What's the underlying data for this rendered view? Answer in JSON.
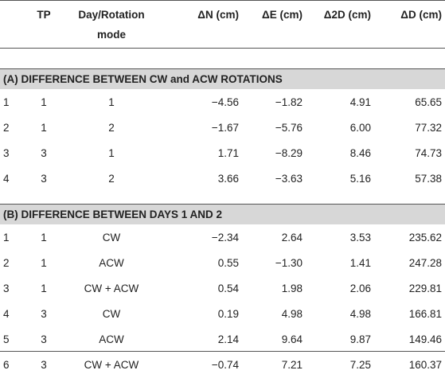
{
  "header": {
    "col0": "",
    "col1": "TP",
    "col2_line1": "Day/Rotation",
    "col2_line2": "mode",
    "col3": "ΔN (cm)",
    "col4": "ΔE (cm)",
    "col5": "Δ2D (cm)",
    "col6": "ΔD (cm)"
  },
  "sections": [
    {
      "title": "(A) DIFFERENCE BETWEEN CW and ACW ROTATIONS",
      "rows": [
        [
          "1",
          "1",
          "1",
          "−4.56",
          "−1.82",
          "4.91",
          "65.65"
        ],
        [
          "2",
          "1",
          "2",
          "−1.67",
          "−5.76",
          "6.00",
          "77.32"
        ],
        [
          "3",
          "3",
          "1",
          "1.71",
          "−8.29",
          "8.46",
          "74.73"
        ],
        [
          "4",
          "3",
          "2",
          "3.66",
          "−3.63",
          "5.16",
          "57.38"
        ]
      ]
    },
    {
      "title": "(B) DIFFERENCE BETWEEN DAYS 1 AND 2",
      "rows": [
        [
          "1",
          "1",
          "CW",
          "−2.34",
          "2.64",
          "3.53",
          "235.62"
        ],
        [
          "2",
          "1",
          "ACW",
          "0.55",
          "−1.30",
          "1.41",
          "247.28"
        ],
        [
          "3",
          "1",
          "CW + ACW",
          "0.54",
          "1.98",
          "2.06",
          "229.81"
        ],
        [
          "4",
          "3",
          "CW",
          "0.19",
          "4.98",
          "4.98",
          "166.81"
        ],
        [
          "5",
          "3",
          "ACW",
          "2.14",
          "9.64",
          "9.87",
          "149.46"
        ],
        [
          "6",
          "3",
          "CW + ACW",
          "−0.74",
          "7.21",
          "7.25",
          "160.37"
        ]
      ]
    }
  ],
  "colors": {
    "section_bg": "#d7d7d7",
    "rule": "#555555",
    "text": "#222222"
  }
}
